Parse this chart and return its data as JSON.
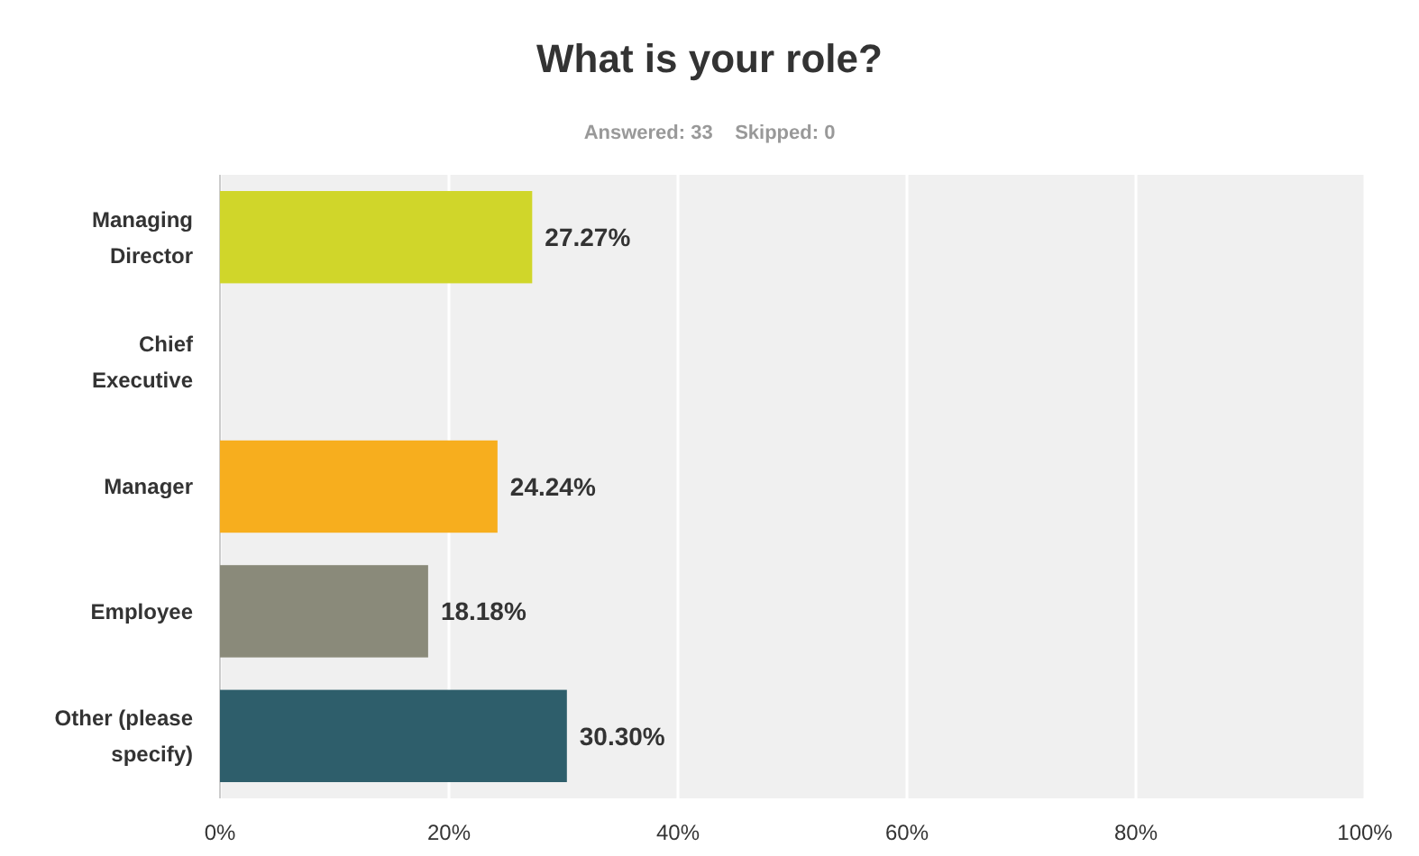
{
  "chart_data": {
    "type": "bar",
    "orientation": "horizontal",
    "title": "What is your role?",
    "subtitle": "Answered: 33    Skipped: 0",
    "categories": [
      "Managing Director",
      "Chief Executive",
      "Manager",
      "Employee",
      "Other (please specify)"
    ],
    "values": [
      27.27,
      0,
      24.24,
      18.18,
      30.3
    ],
    "value_labels": [
      "27.27%",
      null,
      "24.24%",
      "18.18%",
      "30.30%"
    ],
    "colors": [
      "#d0d62a",
      "#1f9bd6",
      "#f7ae1e",
      "#8a8a7a",
      "#2e5e6b"
    ],
    "xlim": [
      0,
      100
    ],
    "xticks": [
      {
        "value": 0,
        "label": "0%"
      },
      {
        "value": 20,
        "label": "20%"
      },
      {
        "value": 40,
        "label": "40%"
      },
      {
        "value": 60,
        "label": "60%"
      },
      {
        "value": 80,
        "label": "80%"
      },
      {
        "value": 100,
        "label": "100%"
      }
    ],
    "grid": "x"
  }
}
